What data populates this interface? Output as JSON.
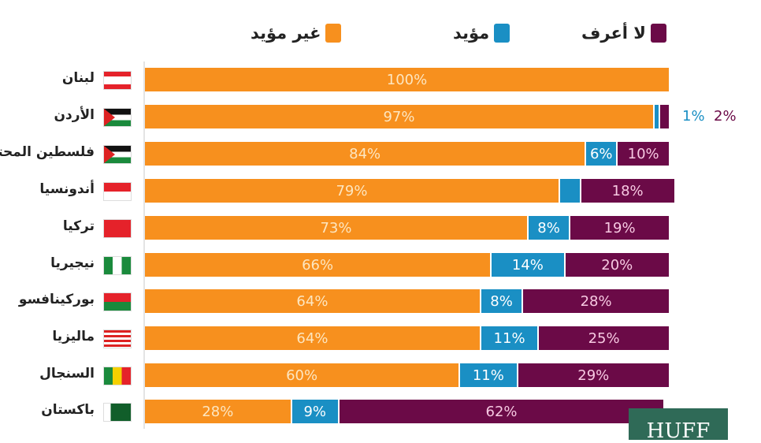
{
  "chart_data": {
    "type": "bar",
    "orientation": "horizontal-stacked",
    "title": "",
    "xlabel": "",
    "ylabel": "",
    "xlim": [
      0,
      100
    ],
    "legend": {
      "placement": "top",
      "entries": [
        {
          "name": "لا أعرف",
          "color": "#6b0a47"
        },
        {
          "name": "مؤيد",
          "color": "#1a8fc4"
        },
        {
          "name": "غير مؤيد",
          "color": "#f7901e"
        }
      ]
    },
    "categories": [
      "لبنان",
      "الأردن",
      "فلسطين المحتلة",
      "أندونسيا",
      "تركيا",
      "نيجيريا",
      "بوركينافسو",
      "ماليزيا",
      "السنجال",
      "باكستان"
    ],
    "series": [
      {
        "name": "غير مؤيد",
        "color": "#f7901e",
        "values": [
          100,
          97,
          84,
          79,
          73,
          66,
          64,
          64,
          60,
          28
        ]
      },
      {
        "name": "مؤيد",
        "color": "#1a8fc4",
        "values": [
          0,
          1,
          6,
          4,
          8,
          14,
          8,
          11,
          11,
          9
        ]
      },
      {
        "name": "لا أعرف",
        "color": "#6b0a47",
        "values": [
          0,
          2,
          10,
          18,
          19,
          20,
          28,
          25,
          29,
          62
        ]
      }
    ],
    "labels_suffix": "%"
  },
  "watermark": "HUFF"
}
